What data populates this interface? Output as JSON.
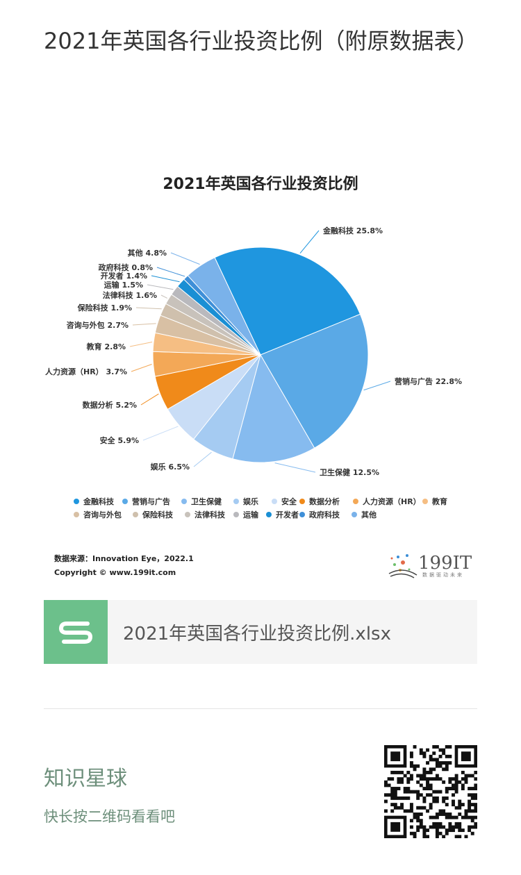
{
  "page": {
    "title": "2021年英国各行业投资比例（附原数据表）"
  },
  "chart_data": {
    "type": "pie",
    "title": "2021年英国各行业投资比例",
    "unit": "%",
    "categories": [
      "金融科技",
      "营销与广告",
      "卫生保健",
      "娱乐",
      "安全",
      "数据分析",
      "人力资源（HR）",
      "教育",
      "咨询与外包",
      "保险科技",
      "法律科技",
      "运输",
      "开发者",
      "政府科技",
      "其他"
    ],
    "values": [
      25.8,
      22.8,
      12.5,
      6.5,
      5.9,
      5.2,
      3.7,
      2.8,
      2.7,
      1.9,
      1.6,
      1.5,
      1.4,
      0.8,
      4.8
    ],
    "slice_labels": [
      "金融科技 25.8%",
      "营销与广告 22.8%",
      "卫生保健 12.5%",
      "娱乐 6.5%",
      "安全 5.9%",
      "数据分析 5.2%",
      "人力资源（HR） 3.7%",
      "教育 2.8%",
      "咨询与外包 2.7%",
      "保险科技 1.9%",
      "法律科技 1.6%",
      "运输 1.5%",
      "开发者 1.4%",
      "政府科技 0.8%",
      "其他 4.8%"
    ],
    "colors": [
      "#1f96df",
      "#5aa9e6",
      "#86bbef",
      "#a5cbf2",
      "#c9ddf6",
      "#f08a1a",
      "#f3a857",
      "#f5be83",
      "#d8c0a4",
      "#cfc0ad",
      "#c8c2bb",
      "#b9b9bd",
      "#1a8fd4",
      "#3f8fd8",
      "#7ab2ea"
    ],
    "legend_position": "bottom",
    "source": "数据来源：Innovation Eye，2022.1",
    "copyright": "Copyright © www.199it.com",
    "brand": "199IT",
    "brand_tagline": "数据驱动未来"
  },
  "attachment": {
    "icon": "spreadsheet-icon",
    "filename": "2021年英国各行业投资比例.xlsx",
    "icon_color": "#6cc08b"
  },
  "footer": {
    "title": "知识星球",
    "subtitle": "快长按二维码看看吧",
    "qr_icon": "qr-code-icon"
  }
}
